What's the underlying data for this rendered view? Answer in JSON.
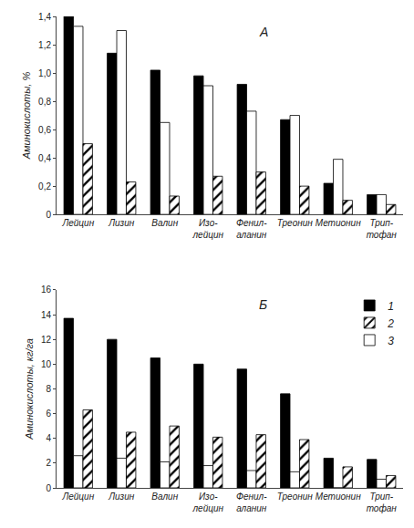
{
  "chart_data": [
    {
      "type": "bar",
      "categories": [
        "Лейцин",
        "Лизин",
        "Валин",
        "Изо-\nлейцин",
        "Фенил-\nаланин",
        "Треонин",
        "Метионин",
        "Трип-\nтофан"
      ],
      "series": [
        {
          "color": "#000000",
          "values": [
            1.4,
            1.14,
            1.02,
            0.98,
            0.92,
            0.67,
            0.22,
            0.14
          ]
        },
        {
          "color": "#ffffff",
          "values": [
            1.33,
            1.3,
            0.65,
            0.91,
            0.73,
            0.7,
            0.39,
            0.14
          ]
        },
        {
          "color": "#ffffff",
          "marker": "hatch",
          "values": [
            0.5,
            0.23,
            0.13,
            0.27,
            0.3,
            0.2,
            0.1,
            0.07
          ]
        }
      ],
      "y_label": "Аминокислоты, %",
      "ylim": [
        0,
        1.4
      ],
      "yticks": [
        0,
        {
          "value": 0.2,
          "label": "0,2"
        },
        {
          "value": 0.4,
          "label": "0,4"
        },
        {
          "value": 0.6,
          "label": "0,6"
        },
        {
          "value": 0.8,
          "label": "0,8"
        },
        {
          "value": 1.0,
          "label": "1,0"
        },
        {
          "value": 1.2,
          "label": "1,2"
        },
        {
          "value": 1.4,
          "label": "1,4"
        }
      ],
      "grid": false,
      "annotations": [
        "А"
      ]
    },
    {
      "type": "bar",
      "categories": [
        "Лейцин",
        "Лизин",
        "Валин",
        "Изо-\nлейцин",
        "Фенил-\nаланин",
        "Треонин",
        "Метионин",
        "Трип-\nтофан"
      ],
      "series": [
        {
          "name": "1",
          "color": "#000000",
          "values": [
            13.7,
            12.0,
            10.5,
            10.0,
            9.6,
            7.6,
            2.4,
            2.3
          ]
        },
        {
          "name": "3",
          "color": "#ffffff",
          "values": [
            2.6,
            2.4,
            2.1,
            1.8,
            1.4,
            1.3,
            0.0,
            0.7
          ]
        },
        {
          "name": "2",
          "color": "#ffffff",
          "marker": "hatch",
          "values": [
            6.3,
            4.5,
            5.0,
            4.1,
            4.3,
            3.9,
            1.7,
            1.0
          ]
        }
      ],
      "y_label": "Аминокислоты, кг/га",
      "ylim": [
        0,
        16
      ],
      "yticks": [
        0,
        2,
        4,
        6,
        8,
        10,
        12,
        14,
        16
      ],
      "grid": false,
      "legend": "upper right",
      "annotations": [
        "Б"
      ]
    }
  ]
}
